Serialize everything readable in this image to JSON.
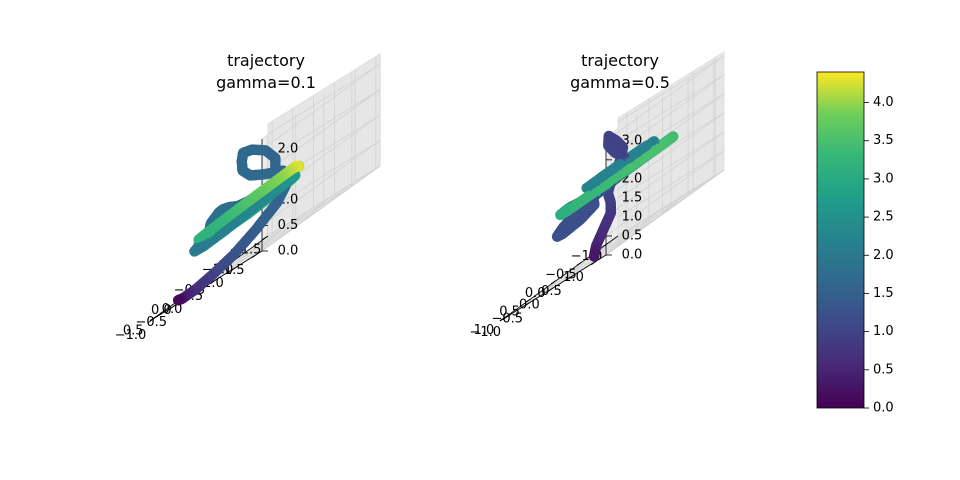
{
  "chart_data": [
    {
      "type": "scatter3d",
      "title_line1": "trajectory",
      "title_line2": "gamma=0.1",
      "x_ticks": [
        "−1.5",
        "−1.0",
        "−0.5",
        "0.0",
        "0.5"
      ],
      "y_ticks": [
        "−1.0",
        "−0.5",
        "0.0",
        "0.5",
        "1.0",
        "1.5"
      ],
      "z_ticks": [
        "0.0",
        "0.5",
        "1.0",
        "1.5",
        "2.0"
      ],
      "xlim": [
        -1.5,
        0.6
      ],
      "ylim": [
        -1.1,
        1.6
      ],
      "zlim": [
        0.0,
        2.2
      ],
      "grid": true,
      "color_scale": "viridis",
      "segments": [
        {
          "x": [
            0.21,
            0.2,
            0.0,
            -0.3,
            -0.6,
            -0.85,
            -1.0,
            -0.9,
            -0.55,
            -0.1,
            0.35,
            0.55,
            0.4,
            0.0,
            -0.45,
            -0.85,
            -1.1,
            -1.1,
            -0.8,
            -0.35,
            0.1,
            0.45,
            0.55,
            0.4,
            0.05
          ],
          "y": [
            -0.95,
            -0.85,
            -0.8,
            -0.8,
            -0.7,
            -0.5,
            -0.2,
            0.15,
            0.4,
            0.5,
            0.4,
            0.1,
            -0.3,
            -0.6,
            -0.7,
            -0.55,
            -0.25,
            0.1,
            0.4,
            0.6,
            0.6,
            0.4,
            0.1,
            -0.2,
            -0.4
          ],
          "z": [
            0.02,
            0.0,
            0.0,
            0.05,
            0.15,
            0.35,
            0.6,
            0.85,
            1.0,
            1.05,
            1.0,
            0.9,
            0.8,
            0.75,
            0.75,
            0.8,
            0.85,
            0.9,
            0.9,
            0.88,
            0.85,
            0.85,
            0.87,
            0.9,
            0.92
          ],
          "c": [
            0.1,
            0.4,
            0.7,
            1.0,
            1.3,
            1.5,
            1.6,
            1.7,
            1.7,
            1.8,
            1.8,
            1.9,
            2.0,
            2.1,
            2.2,
            2.3,
            2.5,
            2.7,
            2.9,
            3.0,
            3.1,
            3.2,
            3.3,
            3.4,
            3.5
          ]
        },
        {
          "x": [
            -1.2,
            -0.95,
            -0.5,
            0.0,
            0.4,
            0.55,
            0.4,
            0.0,
            -0.45,
            -0.85,
            -1.2,
            -1.3,
            -1.2
          ],
          "y": [
            -0.05,
            0.4,
            0.7,
            0.8,
            0.6,
            0.2,
            -0.2,
            -0.45,
            -0.55,
            -0.5,
            -0.35,
            -0.15,
            -0.05
          ],
          "z": [
            1.05,
            1.05,
            1.04,
            1.03,
            1.02,
            1.0,
            0.98,
            0.98,
            0.99,
            1.01,
            1.03,
            1.05,
            1.05
          ],
          "c": [
            4.3,
            4.2,
            4.0,
            3.8,
            3.6,
            3.4,
            3.2,
            3.2,
            3.4,
            3.7,
            4.0,
            4.3,
            4.4
          ]
        },
        {
          "x": [
            -0.6,
            -0.45,
            -0.2,
            0.0,
            0.05,
            0.0,
            -0.05,
            -0.15,
            -0.3,
            -0.4,
            -0.55,
            -0.6,
            -0.5,
            -0.3,
            -0.15,
            0.0,
            0.15,
            0.3,
            0.4,
            0.35
          ],
          "y": [
            0.3,
            0.5,
            0.6,
            0.55,
            0.4,
            0.3,
            0.25,
            0.3,
            0.4,
            0.5,
            0.55,
            0.4,
            0.2,
            0.05,
            0.0,
            0.0,
            0.05,
            0.15,
            0.1,
            0.0
          ],
          "z": [
            1.2,
            1.55,
            1.85,
            2.05,
            2.1,
            1.95,
            1.75,
            1.55,
            1.4,
            1.3,
            1.2,
            1.1,
            1.05,
            1.05,
            1.1,
            1.2,
            1.25,
            1.25,
            1.15,
            1.05
          ],
          "c": [
            1.6,
            1.6,
            1.6,
            1.7,
            1.7,
            1.7,
            1.7,
            1.7,
            1.7,
            1.7,
            1.7,
            1.7,
            1.7,
            1.8,
            1.8,
            1.8,
            1.8,
            1.8,
            1.8,
            1.8
          ]
        }
      ]
    },
    {
      "type": "scatter3d",
      "title_line1": "trajectory",
      "title_line2": "gamma=0.5",
      "x_ticks": [
        "−1.0",
        "−0.5",
        "0.0",
        "0.5",
        "1.0"
      ],
      "y_ticks": [
        "−1.0",
        "−0.5",
        "0.0",
        "0.5",
        "1.0"
      ],
      "z_ticks": [
        "0.0",
        "0.5",
        "1.0",
        "1.5",
        "2.0",
        "2.5",
        "3.0"
      ],
      "xlim": [
        -1.2,
        1.1
      ],
      "ylim": [
        -1.2,
        1.2
      ],
      "zlim": [
        0.0,
        3.1
      ],
      "grid": true,
      "color_scale": "viridis",
      "segments": [
        {
          "x": [
            0.3,
            0.3,
            0.2,
            0.1,
            0.15,
            0.25,
            0.2,
            0.05,
            -0.05,
            0.0,
            0.1,
            0.15,
            0.1,
            0.0,
            -0.05
          ],
          "y": [
            0.0,
            0.05,
            0.1,
            0.15,
            0.2,
            0.25,
            0.3,
            0.3,
            0.25,
            0.15,
            0.1,
            0.15,
            0.25,
            0.35,
            0.4
          ],
          "z": [
            0.05,
            0.3,
            0.6,
            0.9,
            1.2,
            1.5,
            1.8,
            2.1,
            2.4,
            2.7,
            2.95,
            2.7,
            2.4,
            2.1,
            1.85
          ],
          "c": [
            0.3,
            0.5,
            0.7,
            0.8,
            0.9,
            1.0,
            1.0,
            1.0,
            1.0,
            1.0,
            1.0,
            1.0,
            1.0,
            1.0,
            1.0
          ]
        },
        {
          "x": [
            -0.05,
            0.2,
            0.5,
            0.75,
            0.9,
            0.85,
            0.6,
            0.35,
            0.25,
            0.4,
            0.65,
            0.8
          ],
          "y": [
            0.4,
            0.5,
            0.4,
            0.2,
            0.0,
            -0.2,
            -0.35,
            -0.25,
            -0.05,
            0.1,
            0.1,
            0.0
          ],
          "z": [
            1.85,
            1.75,
            1.7,
            1.6,
            1.4,
            1.25,
            1.2,
            1.25,
            1.4,
            1.6,
            1.75,
            1.8
          ],
          "c": [
            1.0,
            1.1,
            1.1,
            1.2,
            1.2,
            1.2,
            1.2,
            1.2,
            1.2,
            1.2,
            1.3,
            1.3
          ]
        },
        {
          "x": [
            0.8,
            0.7,
            0.4,
            0.0,
            -0.4,
            -0.75,
            -0.95,
            -0.9,
            -0.6,
            -0.2,
            0.2,
            0.5
          ],
          "y": [
            0.0,
            -0.3,
            -0.5,
            -0.55,
            -0.45,
            -0.2,
            0.1,
            0.4,
            0.55,
            0.55,
            0.4,
            0.2
          ],
          "z": [
            1.8,
            1.75,
            1.7,
            1.68,
            1.68,
            1.7,
            1.72,
            1.75,
            1.76,
            1.76,
            1.74,
            1.72
          ],
          "c": [
            3.0,
            3.1,
            3.2,
            3.3,
            3.4,
            3.5,
            3.5,
            3.4,
            3.2,
            3.0,
            2.8,
            2.6
          ]
        },
        {
          "x": [
            -0.4,
            -0.15,
            0.15,
            0.45,
            0.6,
            0.4,
            0.0,
            -0.35,
            -0.45
          ],
          "y": [
            0.55,
            0.7,
            0.7,
            0.5,
            0.2,
            -0.05,
            -0.1,
            0.1,
            0.35
          ],
          "z": [
            2.0,
            2.02,
            2.03,
            2.02,
            2.0,
            1.98,
            1.98,
            1.99,
            2.0
          ],
          "c": [
            2.2,
            2.2,
            2.2,
            2.2,
            2.2,
            2.2,
            2.2,
            2.2,
            2.2
          ]
        }
      ]
    }
  ],
  "colorbar": {
    "min": 0.0,
    "max": 4.4,
    "ticks": [
      0.0,
      0.5,
      1.0,
      1.5,
      2.0,
      2.5,
      3.0,
      3.5,
      4.0
    ],
    "tick_labels": [
      "0.0",
      "0.5",
      "1.0",
      "1.5",
      "2.0",
      "2.5",
      "3.0",
      "3.5",
      "4.0"
    ],
    "colormap": "viridis"
  }
}
